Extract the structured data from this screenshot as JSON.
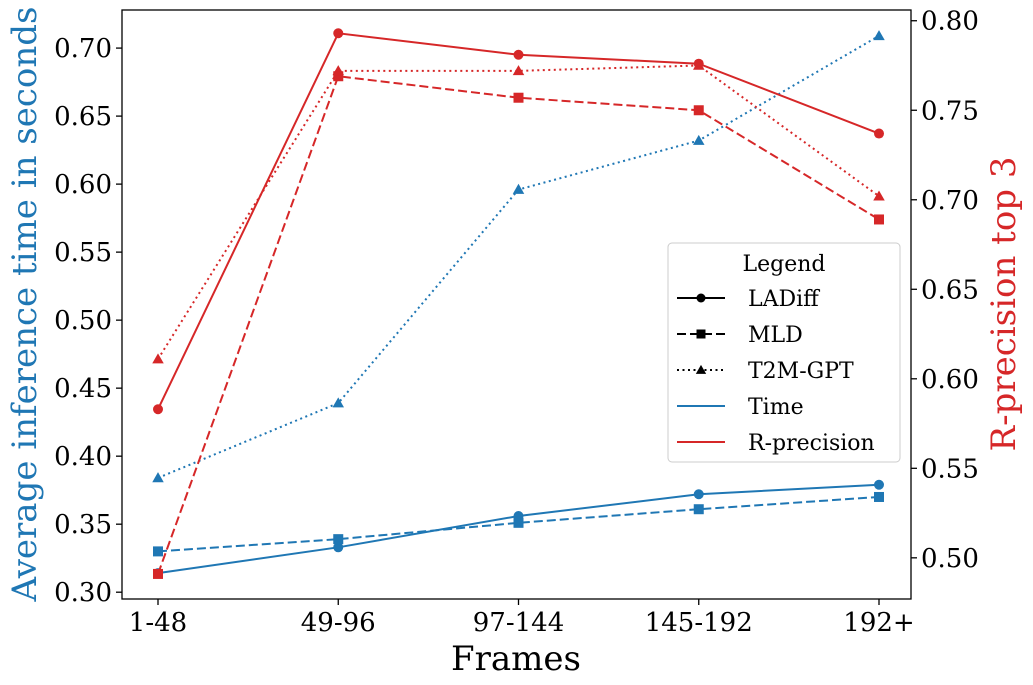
{
  "chart_data": {
    "type": "line",
    "categories": [
      "1-48",
      "49-96",
      "97-144",
      "145-192",
      "192+"
    ],
    "xlabel": "Frames",
    "ylabel_left": "Average inference time in seconds",
    "ylabel_right": "R-precision top 3",
    "ylim_left": [
      0.295,
      0.728
    ],
    "ylim_right": [
      0.477,
      0.806
    ],
    "yticks_left": [
      0.3,
      0.35,
      0.4,
      0.45,
      0.5,
      0.55,
      0.6,
      0.65,
      0.7
    ],
    "yticks_right": [
      0.5,
      0.55,
      0.6,
      0.65,
      0.7,
      0.75,
      0.8
    ],
    "colors": {
      "time": "#1f77b4",
      "rprecision": "#d62728",
      "left_axis_label": "#1f77b4",
      "right_axis_label": "#d62728"
    },
    "series": [
      {
        "model": "LADiff",
        "metric": "Time",
        "axis": "left",
        "style": "solid",
        "marker": "circle",
        "values": [
          0.314,
          0.333,
          0.356,
          0.372,
          0.379
        ]
      },
      {
        "model": "MLD",
        "metric": "Time",
        "axis": "left",
        "style": "dashed",
        "marker": "square",
        "values": [
          0.33,
          0.339,
          0.351,
          0.361,
          0.37
        ]
      },
      {
        "model": "T2M-GPT",
        "metric": "Time",
        "axis": "left",
        "style": "dotted",
        "marker": "triangle",
        "values": [
          0.384,
          0.439,
          0.596,
          0.632,
          0.709
        ]
      },
      {
        "model": "LADiff",
        "metric": "R-precision",
        "axis": "right",
        "style": "solid",
        "marker": "circle",
        "values": [
          0.583,
          0.793,
          0.781,
          0.776,
          0.737
        ]
      },
      {
        "model": "MLD",
        "metric": "R-precision",
        "axis": "right",
        "style": "dashed",
        "marker": "square",
        "values": [
          0.491,
          0.769,
          0.757,
          0.75,
          0.689
        ]
      },
      {
        "model": "T2M-GPT",
        "metric": "R-precision",
        "axis": "right",
        "style": "dotted",
        "marker": "triangle",
        "values": [
          0.611,
          0.772,
          0.772,
          0.775,
          0.702
        ]
      }
    ],
    "legend": {
      "title": "Legend",
      "placement": "center-right",
      "entries": [
        {
          "label": "LADiff",
          "style": "solid",
          "marker": "circle",
          "color": "#000000"
        },
        {
          "label": "MLD",
          "style": "dashed",
          "marker": "square",
          "color": "#000000"
        },
        {
          "label": "T2M-GPT",
          "style": "dotted",
          "marker": "triangle",
          "color": "#000000"
        },
        {
          "label": "Time",
          "style": "solid",
          "marker": "none",
          "color": "#1f77b4"
        },
        {
          "label": "R-precision",
          "style": "solid",
          "marker": "none",
          "color": "#d62728"
        }
      ]
    }
  }
}
